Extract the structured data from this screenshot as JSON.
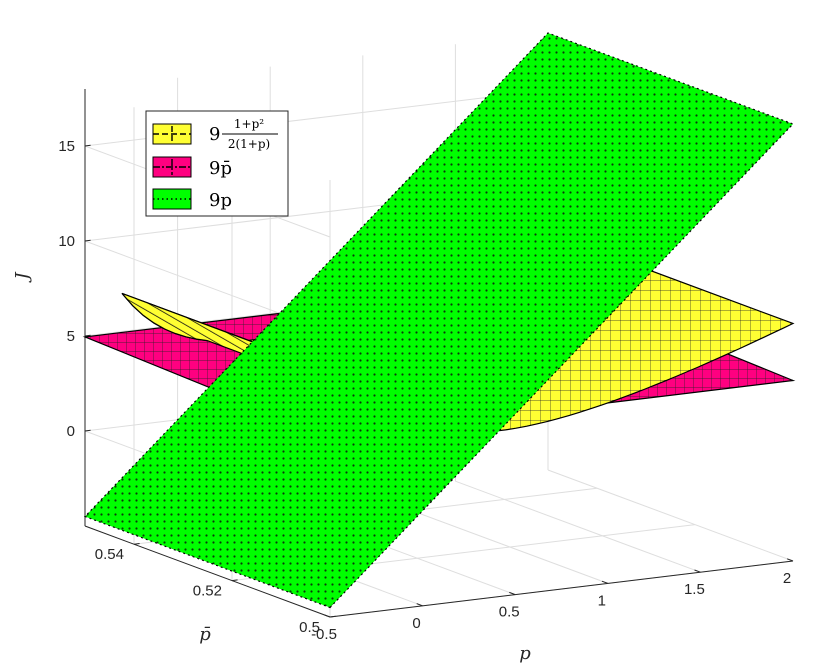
{
  "chart_data": {
    "type": "surface3d",
    "xlabel": "p",
    "ylabel": "p̄",
    "zlabel": "J",
    "xlim": [
      -0.5,
      2
    ],
    "ylim": [
      0.5,
      0.55
    ],
    "zlim": [
      -5,
      18
    ],
    "xticks": [
      "-0.5",
      "0",
      "0.5",
      "1",
      "1.5",
      "2"
    ],
    "yticks": [
      "0.5",
      "0.52",
      "0.54"
    ],
    "zticks": [
      "0",
      "5",
      "10",
      "15"
    ],
    "grid": true,
    "legend_position": "top-left",
    "series": [
      {
        "id": "ratio",
        "name": "9 (1+p²)/(2(1+p))",
        "legend_coefficient": "9",
        "legend_numerator": "1+p²",
        "legend_denominator": "2(1+p)",
        "formula": "9*(1+p^2)/(2*(1+p))",
        "x_range": [
          -0.3,
          2
        ],
        "color": "#ffff33",
        "edge_color": "#000000",
        "line_style": "dashed",
        "values_at_p": [
          {
            "p": -0.3,
            "J": 7.01
          },
          {
            "p": 0,
            "J": 4.5
          },
          {
            "p": 0.41,
            "J": 3.73
          },
          {
            "p": 1,
            "J": 4.5
          },
          {
            "p": 2,
            "J": 7.5
          }
        ]
      },
      {
        "id": "pbar",
        "name": "9p̄",
        "legend_label": "9p̄",
        "formula": "9*pbar",
        "x_range": [
          -0.5,
          2
        ],
        "color": "#ff0080",
        "edge_color": "#000000",
        "line_style": "dash-dot",
        "values_at_pbar": [
          {
            "pbar": 0.5,
            "J": 4.5
          },
          {
            "pbar": 0.55,
            "J": 4.95
          }
        ]
      },
      {
        "id": "p",
        "name": "9p",
        "legend_label": "9p",
        "formula": "9*p",
        "x_range": [
          -0.5,
          2
        ],
        "color": "#00ff00",
        "edge_color": "#000000",
        "line_style": "dotted",
        "values_at_p": [
          {
            "p": -0.5,
            "J": -4.5
          },
          {
            "p": 2,
            "J": 18
          }
        ]
      }
    ]
  }
}
